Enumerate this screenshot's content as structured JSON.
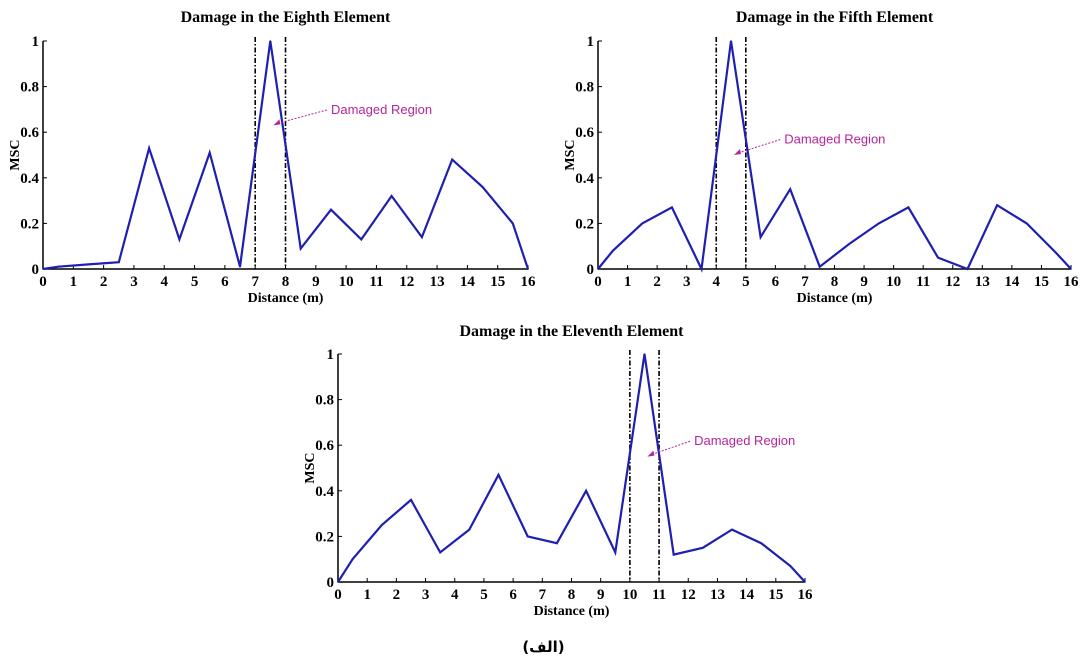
{
  "caption": "(الف)",
  "line_color": "#1f1fb0",
  "annotation_color": "#b5249c",
  "chart_data": [
    {
      "type": "line",
      "title": "Damage in the Eighth Element",
      "xlabel": "Distance (m)",
      "ylabel": "MSC",
      "xlim": [
        0,
        16
      ],
      "ylim": [
        0,
        1
      ],
      "xticks": [
        0,
        1,
        2,
        3,
        4,
        5,
        6,
        7,
        8,
        9,
        10,
        11,
        12,
        13,
        14,
        15,
        16
      ],
      "yticks": [
        0,
        0.2,
        0.4,
        0.6,
        0.8,
        1
      ],
      "ytick_labels": [
        "0",
        "0.2",
        "0.4",
        "0.6",
        "0.8",
        "1"
      ],
      "x": [
        0,
        0.5,
        1.5,
        2.5,
        3.5,
        4.5,
        5.5,
        6.5,
        7.5,
        8.5,
        9.5,
        10.5,
        11.5,
        12.5,
        13.5,
        14.5,
        15.5,
        16
      ],
      "y": [
        0,
        0.01,
        0.02,
        0.03,
        0.53,
        0.13,
        0.51,
        0.01,
        1.0,
        0.09,
        0.26,
        0.13,
        0.32,
        0.14,
        0.48,
        0.36,
        0.2,
        0
      ],
      "damaged_region": [
        7,
        8
      ],
      "annotation": "Damaged Region",
      "annotation_target": [
        7.6,
        0.63
      ],
      "annotation_text_pos": [
        9.5,
        0.68
      ]
    },
    {
      "type": "line",
      "title": "Damage in the Fifth Element",
      "xlabel": "Distance (m)",
      "ylabel": "MSC",
      "xlim": [
        0,
        16
      ],
      "ylim": [
        0,
        1
      ],
      "xticks": [
        0,
        1,
        2,
        3,
        4,
        5,
        6,
        7,
        8,
        9,
        10,
        11,
        12,
        13,
        14,
        15,
        16
      ],
      "yticks": [
        0,
        0.2,
        0.4,
        0.6,
        0.8,
        1
      ],
      "ytick_labels": [
        "0",
        "0.2",
        "0.4",
        "0.6",
        "0.8",
        "1"
      ],
      "x": [
        0,
        0.5,
        1.5,
        2.5,
        3.5,
        4.5,
        5.5,
        6.5,
        7.5,
        8.5,
        9.5,
        10.5,
        11.5,
        12.5,
        13.5,
        14.5,
        15.5,
        16
      ],
      "y": [
        0,
        0.08,
        0.2,
        0.27,
        0,
        1.0,
        0.14,
        0.35,
        0.01,
        0.11,
        0.2,
        0.27,
        0.05,
        0,
        0.28,
        0.2,
        0.07,
        0
      ],
      "damaged_region": [
        4,
        5
      ],
      "annotation": "Damaged Region",
      "annotation_target": [
        4.6,
        0.5
      ],
      "annotation_text_pos": [
        6.3,
        0.55
      ]
    },
    {
      "type": "line",
      "title": "Damage in the Eleventh Element",
      "xlabel": "Distance (m)",
      "ylabel": "MSC",
      "xlim": [
        0,
        16
      ],
      "ylim": [
        0,
        1
      ],
      "xticks": [
        0,
        1,
        2,
        3,
        4,
        5,
        6,
        7,
        8,
        9,
        10,
        11,
        12,
        13,
        14,
        15,
        16
      ],
      "yticks": [
        0,
        0.2,
        0.4,
        0.6,
        0.8,
        1
      ],
      "ytick_labels": [
        "0",
        "0.2",
        "0.4",
        "0.6",
        "0.8",
        "1"
      ],
      "x": [
        0,
        0.5,
        1.5,
        2.5,
        3.5,
        4.5,
        5.5,
        6.5,
        7.5,
        8.5,
        9.5,
        10.5,
        11.5,
        12.5,
        13.5,
        14.5,
        15.5,
        16
      ],
      "y": [
        0,
        0.1,
        0.25,
        0.36,
        0.13,
        0.23,
        0.47,
        0.2,
        0.17,
        0.4,
        0.13,
        1.0,
        0.12,
        0.15,
        0.23,
        0.17,
        0.07,
        0
      ],
      "damaged_region": [
        10,
        11
      ],
      "annotation": "Damaged Region",
      "annotation_target": [
        10.6,
        0.55
      ],
      "annotation_text_pos": [
        12.2,
        0.6
      ]
    }
  ]
}
